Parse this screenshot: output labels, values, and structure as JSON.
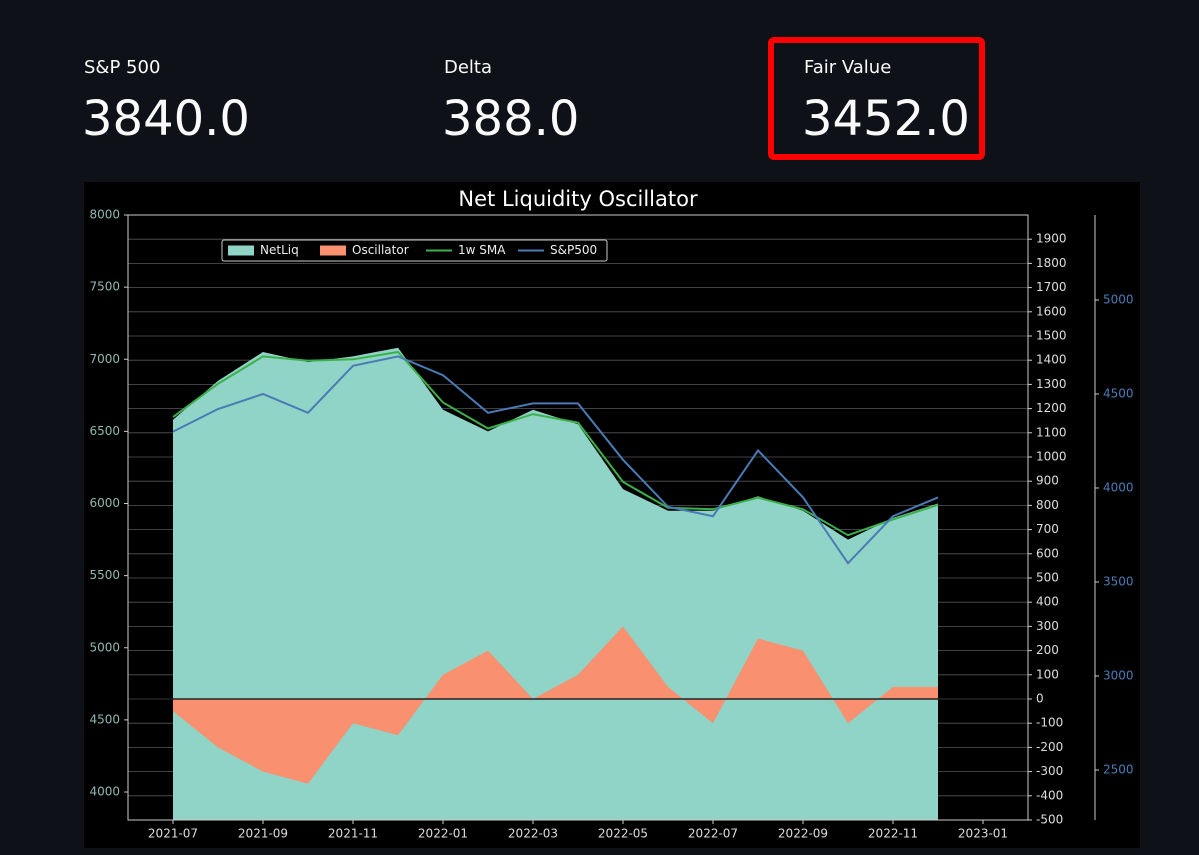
{
  "metrics": [
    {
      "label": "S&P 500",
      "value": "3840.0"
    },
    {
      "label": "Delta",
      "value": "388.0"
    },
    {
      "label": "Fair Value",
      "value": "3452.0"
    }
  ],
  "chart_data": {
    "type": "line",
    "title": "Net Liquidity Oscillator",
    "x": [
      "2021-07",
      "2021-08",
      "2021-09",
      "2021-10",
      "2021-11",
      "2021-12",
      "2022-01",
      "2022-02",
      "2022-03",
      "2022-04",
      "2022-05",
      "2022-06",
      "2022-07",
      "2022-08",
      "2022-09",
      "2022-10",
      "2022-11",
      "2022-12"
    ],
    "xlim": [
      "2021-06",
      "2023-02"
    ],
    "xticks": [
      "2021-07",
      "2021-09",
      "2021-11",
      "2022-01",
      "2022-03",
      "2022-05",
      "2022-07",
      "2022-09",
      "2022-11",
      "2023-01"
    ],
    "ylim": [
      3806,
      8000
    ],
    "yticks": [
      4000,
      4500,
      5000,
      5500,
      6000,
      6500,
      7000,
      7500,
      8000
    ],
    "y2lim": [
      -500,
      2000
    ],
    "y2ticks": [
      -500,
      -400,
      -300,
      -200,
      -100,
      0,
      100,
      200,
      300,
      400,
      500,
      600,
      700,
      800,
      900,
      1000,
      1100,
      1200,
      1300,
      1400,
      1500,
      1600,
      1700,
      1800,
      1900
    ],
    "y3lim": [
      2234,
      5452
    ],
    "y3ticks": [
      2500,
      3000,
      3500,
      4000,
      4500,
      5000
    ],
    "grid": "y2",
    "legend": "upper left",
    "series": [
      {
        "name": "NetLiq",
        "kind": "area",
        "color": "#8fd4c6",
        "values": [
          6580,
          6850,
          7050,
          6980,
          7020,
          7080,
          6650,
          6500,
          6650,
          6550,
          6100,
          5950,
          5950,
          6050,
          5950,
          5750,
          5900,
          6000
        ]
      },
      {
        "name": "Oscillator",
        "kind": "area",
        "axis": "y2",
        "color": "#f9906f",
        "values": [
          -50,
          -200,
          -300,
          -350,
          -100,
          -150,
          100,
          200,
          0,
          100,
          300,
          50,
          -100,
          250,
          200,
          -100,
          50,
          50
        ]
      },
      {
        "name": "1w SMA",
        "kind": "line",
        "color": "#3cb04a",
        "values": [
          6600,
          6830,
          7020,
          6990,
          7000,
          7050,
          6700,
          6520,
          6620,
          6560,
          6150,
          5970,
          5960,
          6040,
          5960,
          5780,
          5890,
          5990
        ]
      },
      {
        "name": "S&P500",
        "kind": "line",
        "axis": "y3",
        "color": "#4a7bb5",
        "values": [
          4300,
          4420,
          4500,
          4400,
          4650,
          4700,
          4600,
          4400,
          4450,
          4450,
          4150,
          3900,
          3850,
          4200,
          3950,
          3600,
          3850,
          3950
        ]
      }
    ]
  }
}
